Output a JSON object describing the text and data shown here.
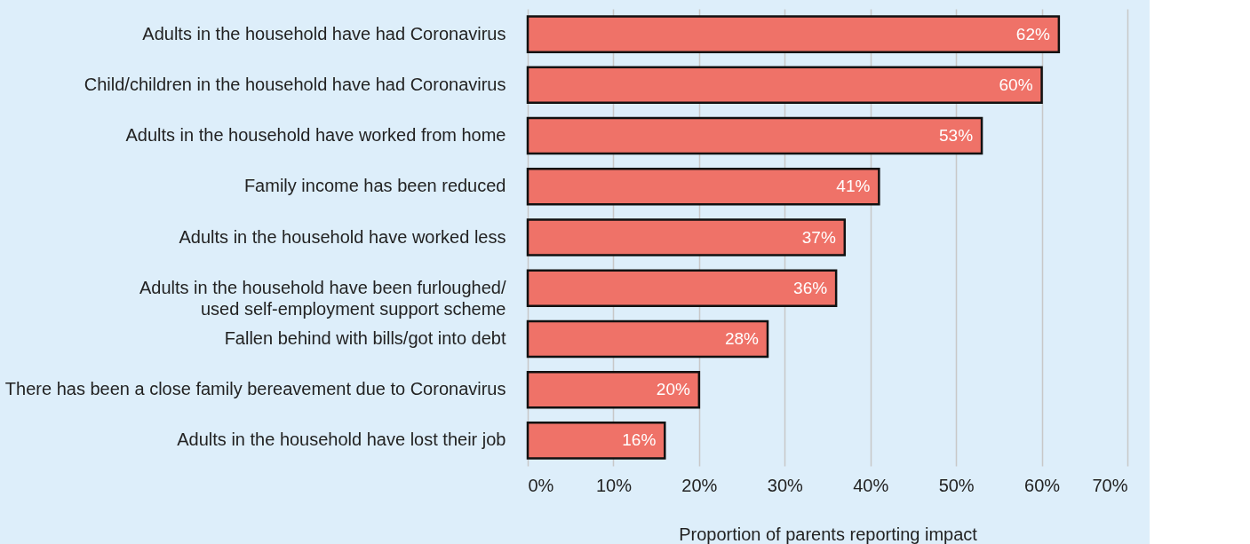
{
  "chart_data": {
    "type": "bar",
    "orientation": "horizontal",
    "xlabel": "Proportion of parents reporting impact",
    "categories": [
      "Adults in the household have had Coronavirus",
      "Child/children in the household have had Coronavirus",
      "Adults in the household have worked from home",
      "Family income has been reduced",
      "Adults in the household have worked less",
      "Adults in the household have been furloughed/\nused self-employment support scheme",
      "Fallen behind with bills/got into debt",
      "There has been a close family bereavement due to Coronavirus",
      "Adults in the household have lost their job"
    ],
    "values": [
      62,
      60,
      53,
      41,
      37,
      36,
      28,
      20,
      16
    ],
    "value_labels": [
      "62%",
      "60%",
      "53%",
      "41%",
      "37%",
      "36%",
      "28%",
      "20%",
      "16%"
    ],
    "color": "#ef7268",
    "xlim": [
      0,
      70
    ],
    "xticks": [
      {
        "value": 0,
        "label": "0%"
      },
      {
        "value": 10,
        "label": "10%"
      },
      {
        "value": 20,
        "label": "20%"
      },
      {
        "value": 30,
        "label": "30%"
      },
      {
        "value": 40,
        "label": "40%"
      },
      {
        "value": 50,
        "label": "50%"
      },
      {
        "value": 60,
        "label": "60%"
      },
      {
        "value": 70,
        "label": "70%"
      }
    ],
    "grid": "x"
  }
}
